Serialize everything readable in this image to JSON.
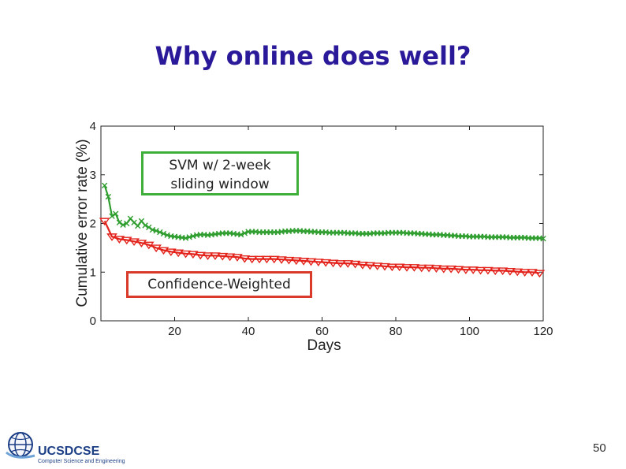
{
  "slide": {
    "title": "Why online does well?",
    "page_number": "50"
  },
  "logo": {
    "text": "UCSDCSE",
    "subtitle": "Computer Science and Engineering"
  },
  "callouts": {
    "svm": [
      "SVM w/ 2-week",
      "sliding window"
    ],
    "cw": "Confidence-Weighted"
  },
  "colors": {
    "title": "#2a1a9a",
    "svm_series": "#2f9e2f",
    "cw_series": "#e3231b",
    "svm_box": "#3fae3a",
    "cw_box": "#d93a2a"
  },
  "chart_data": {
    "type": "line",
    "xlabel": "Days",
    "ylabel": "Cumulative error rate (%)",
    "xlim": [
      0,
      120
    ],
    "ylim": [
      0,
      4
    ],
    "xticks": [
      20,
      40,
      60,
      80,
      100,
      120
    ],
    "yticks": [
      0,
      1,
      2,
      3,
      4
    ],
    "grid": false,
    "series": [
      {
        "marker": "x",
        "color": "#2f9e2f",
        "x": [
          1,
          2,
          3,
          4,
          5,
          6,
          7,
          8,
          9,
          10,
          11,
          12,
          13,
          14,
          15,
          16,
          17,
          18,
          19,
          20,
          21,
          22,
          23,
          24,
          25,
          26,
          27,
          28,
          29,
          30,
          31,
          32,
          33,
          34,
          35,
          36,
          37,
          38,
          39,
          40,
          41,
          42,
          43,
          44,
          45,
          46,
          47,
          48,
          49,
          50,
          51,
          52,
          53,
          54,
          55,
          56,
          57,
          58,
          59,
          60,
          61,
          62,
          63,
          64,
          65,
          66,
          67,
          68,
          69,
          70,
          71,
          72,
          73,
          74,
          75,
          76,
          77,
          78,
          79,
          80,
          81,
          82,
          83,
          84,
          85,
          86,
          87,
          88,
          89,
          90,
          91,
          92,
          93,
          94,
          95,
          96,
          97,
          98,
          99,
          100,
          101,
          102,
          103,
          104,
          105,
          106,
          107,
          108,
          109,
          110,
          111,
          112,
          113,
          114,
          115,
          116,
          117,
          118,
          119,
          120
        ],
        "values": [
          2.78,
          2.55,
          2.15,
          2.2,
          2.02,
          1.97,
          2.0,
          2.1,
          2.02,
          1.95,
          2.05,
          1.96,
          1.92,
          1.87,
          1.85,
          1.82,
          1.79,
          1.76,
          1.74,
          1.73,
          1.72,
          1.71,
          1.7,
          1.72,
          1.74,
          1.76,
          1.77,
          1.77,
          1.76,
          1.77,
          1.78,
          1.79,
          1.8,
          1.8,
          1.8,
          1.79,
          1.78,
          1.77,
          1.8,
          1.83,
          1.83,
          1.83,
          1.82,
          1.82,
          1.82,
          1.82,
          1.82,
          1.82,
          1.83,
          1.84,
          1.84,
          1.85,
          1.85,
          1.85,
          1.84,
          1.84,
          1.83,
          1.83,
          1.82,
          1.82,
          1.82,
          1.81,
          1.81,
          1.81,
          1.81,
          1.81,
          1.8,
          1.8,
          1.8,
          1.79,
          1.79,
          1.79,
          1.79,
          1.8,
          1.8,
          1.8,
          1.8,
          1.81,
          1.81,
          1.81,
          1.81,
          1.81,
          1.8,
          1.8,
          1.8,
          1.79,
          1.79,
          1.78,
          1.78,
          1.77,
          1.77,
          1.77,
          1.76,
          1.76,
          1.75,
          1.75,
          1.74,
          1.74,
          1.74,
          1.73,
          1.73,
          1.73,
          1.73,
          1.73,
          1.72,
          1.72,
          1.72,
          1.72,
          1.72,
          1.72,
          1.71,
          1.71,
          1.71,
          1.71,
          1.71,
          1.7,
          1.7,
          1.7,
          1.7,
          1.69
        ]
      },
      {
        "marker": "triangle-down",
        "color": "#e3231b",
        "x": [
          1,
          3,
          5,
          7,
          9,
          11,
          13,
          15,
          17,
          19,
          21,
          23,
          25,
          27,
          29,
          31,
          33,
          35,
          37,
          39,
          41,
          43,
          45,
          47,
          49,
          51,
          53,
          55,
          57,
          59,
          61,
          63,
          65,
          67,
          69,
          71,
          73,
          75,
          77,
          79,
          81,
          83,
          85,
          87,
          89,
          91,
          93,
          95,
          97,
          99,
          101,
          103,
          105,
          107,
          109,
          111,
          113,
          115,
          117,
          119
        ],
        "values": [
          2.05,
          1.73,
          1.68,
          1.66,
          1.63,
          1.6,
          1.56,
          1.5,
          1.45,
          1.42,
          1.4,
          1.38,
          1.37,
          1.35,
          1.34,
          1.34,
          1.33,
          1.32,
          1.31,
          1.28,
          1.27,
          1.27,
          1.27,
          1.27,
          1.26,
          1.25,
          1.24,
          1.23,
          1.22,
          1.21,
          1.2,
          1.19,
          1.18,
          1.18,
          1.17,
          1.15,
          1.14,
          1.13,
          1.12,
          1.11,
          1.11,
          1.1,
          1.1,
          1.09,
          1.09,
          1.08,
          1.07,
          1.07,
          1.06,
          1.05,
          1.05,
          1.04,
          1.04,
          1.03,
          1.03,
          1.02,
          1.01,
          1.0,
          1.0,
          0.98
        ]
      }
    ]
  }
}
